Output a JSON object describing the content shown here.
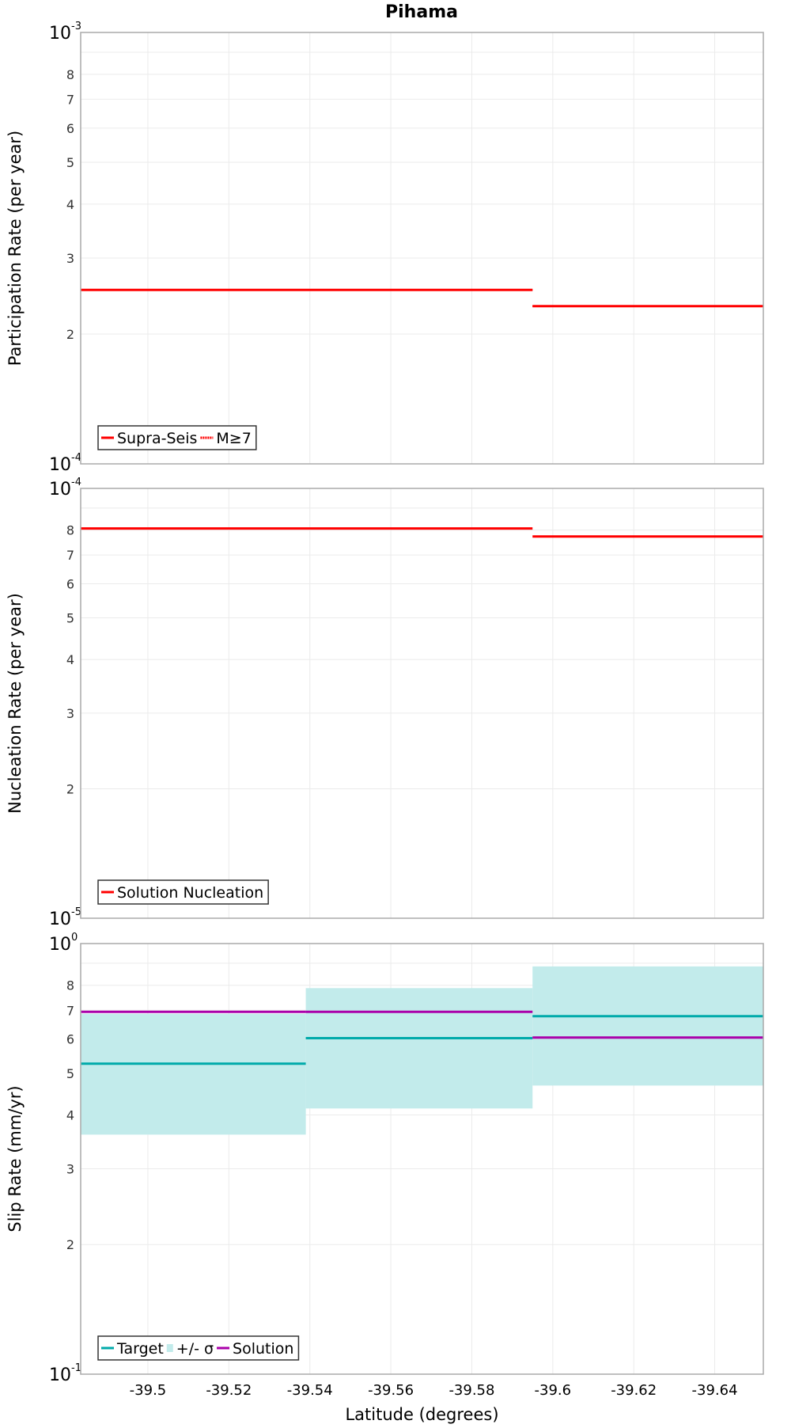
{
  "title": "Pihama",
  "chart_data": [
    {
      "type": "line",
      "name": "participation",
      "ylabel": "Participation Rate (per year)",
      "yscale": "log",
      "ylim": [
        0.0001,
        0.001
      ],
      "decade_labels": {
        "top": {
          "base": "10",
          "exp": "-3"
        },
        "bottom": {
          "base": "10",
          "exp": "-4"
        }
      },
      "minor_tick_labels": [
        "2",
        "3",
        "4",
        "5",
        "6",
        "7",
        "8"
      ],
      "legend": {
        "placement": "bottom-left",
        "entries": [
          {
            "label": "Supra-Seis",
            "color": "#ff0000",
            "style": "solid"
          },
          {
            "label": "M≥7",
            "color": "#ff0000",
            "style": "dotted"
          }
        ]
      },
      "series": [
        {
          "name": "Supra-Seis",
          "color": "#ff0000",
          "segments": [
            {
              "x": [
                -39.4834,
                -39.595
              ],
              "y": 0.000253
            },
            {
              "x": [
                -39.595,
                -39.652
              ],
              "y": 0.000232
            }
          ]
        },
        {
          "name": "M≥7",
          "color": "#ff0000",
          "dotted": true,
          "segments": [
            {
              "x": [
                -39.4834,
                -39.595
              ],
              "y": 0.000253
            },
            {
              "x": [
                -39.595,
                -39.652
              ],
              "y": 0.000232
            }
          ]
        }
      ]
    },
    {
      "type": "line",
      "name": "nucleation",
      "ylabel": "Nucleation Rate (per year)",
      "yscale": "log",
      "ylim": [
        1e-05,
        0.0001
      ],
      "decade_labels": {
        "top": {
          "base": "10",
          "exp": "-4"
        },
        "bottom": {
          "base": "10",
          "exp": "-5"
        }
      },
      "minor_tick_labels": [
        "2",
        "3",
        "4",
        "5",
        "6",
        "7",
        "8"
      ],
      "legend": {
        "placement": "bottom-left",
        "entries": [
          {
            "label": "Solution Nucleation",
            "color": "#ff0000",
            "style": "solid"
          }
        ]
      },
      "series": [
        {
          "name": "Solution Nucleation",
          "color": "#ff0000",
          "segments": [
            {
              "x": [
                -39.4834,
                -39.595
              ],
              "y": 8.07e-05
            },
            {
              "x": [
                -39.595,
                -39.652
              ],
              "y": 7.73e-05
            }
          ]
        }
      ]
    },
    {
      "type": "line",
      "name": "slip-rate",
      "ylabel": "Slip Rate (mm/yr)",
      "xlabel": "Latitude (degrees)",
      "yscale": "log",
      "ylim": [
        0.1,
        1
      ],
      "decade_labels": {
        "top": {
          "base": "10",
          "exp": "0"
        },
        "bottom": {
          "base": "10",
          "exp": "-1"
        }
      },
      "minor_tick_labels": [
        "2",
        "3",
        "4",
        "5",
        "6",
        "7",
        "8"
      ],
      "legend": {
        "placement": "bottom-left",
        "entries": [
          {
            "label": "Target",
            "color": "#00aaaa",
            "style": "solid"
          },
          {
            "label": "+/- σ",
            "color": "#c2ebeb",
            "style": "fill"
          },
          {
            "label": "Solution",
            "color": "#aa00aa",
            "style": "solid"
          }
        ]
      },
      "bands": [
        {
          "name": "+/- σ",
          "color": "#c2ebeb",
          "segments": [
            {
              "x": [
                -39.4834,
                -39.539
              ],
              "low": 0.36,
              "high": 0.687
            },
            {
              "x": [
                -39.539,
                -39.595
              ],
              "low": 0.414,
              "high": 0.788
            },
            {
              "x": [
                -39.595,
                -39.652
              ],
              "low": 0.468,
              "high": 0.885
            }
          ]
        }
      ],
      "series": [
        {
          "name": "Target",
          "color": "#00aaaa",
          "segments": [
            {
              "x": [
                -39.4834,
                -39.539
              ],
              "y": 0.526
            },
            {
              "x": [
                -39.539,
                -39.595
              ],
              "y": 0.603
            },
            {
              "x": [
                -39.595,
                -39.652
              ],
              "y": 0.678
            }
          ]
        },
        {
          "name": "Solution",
          "color": "#aa00aa",
          "segments": [
            {
              "x": [
                -39.4834,
                -39.539
              ],
              "y": 0.694
            },
            {
              "x": [
                -39.539,
                -39.595
              ],
              "y": 0.694
            },
            {
              "x": [
                -39.595,
                -39.652
              ],
              "y": 0.605
            }
          ]
        }
      ]
    }
  ],
  "xaxis": {
    "label": "Latitude (degrees)",
    "xlim": [
      -39.4834,
      -39.652
    ],
    "ticks": [
      -39.5,
      -39.52,
      -39.54,
      -39.56,
      -39.58,
      -39.6,
      -39.62,
      -39.64
    ],
    "tick_labels": [
      "-39.5",
      "-39.52",
      "-39.54",
      "-39.56",
      "-39.58",
      "-39.6",
      "-39.62",
      "-39.64"
    ]
  }
}
